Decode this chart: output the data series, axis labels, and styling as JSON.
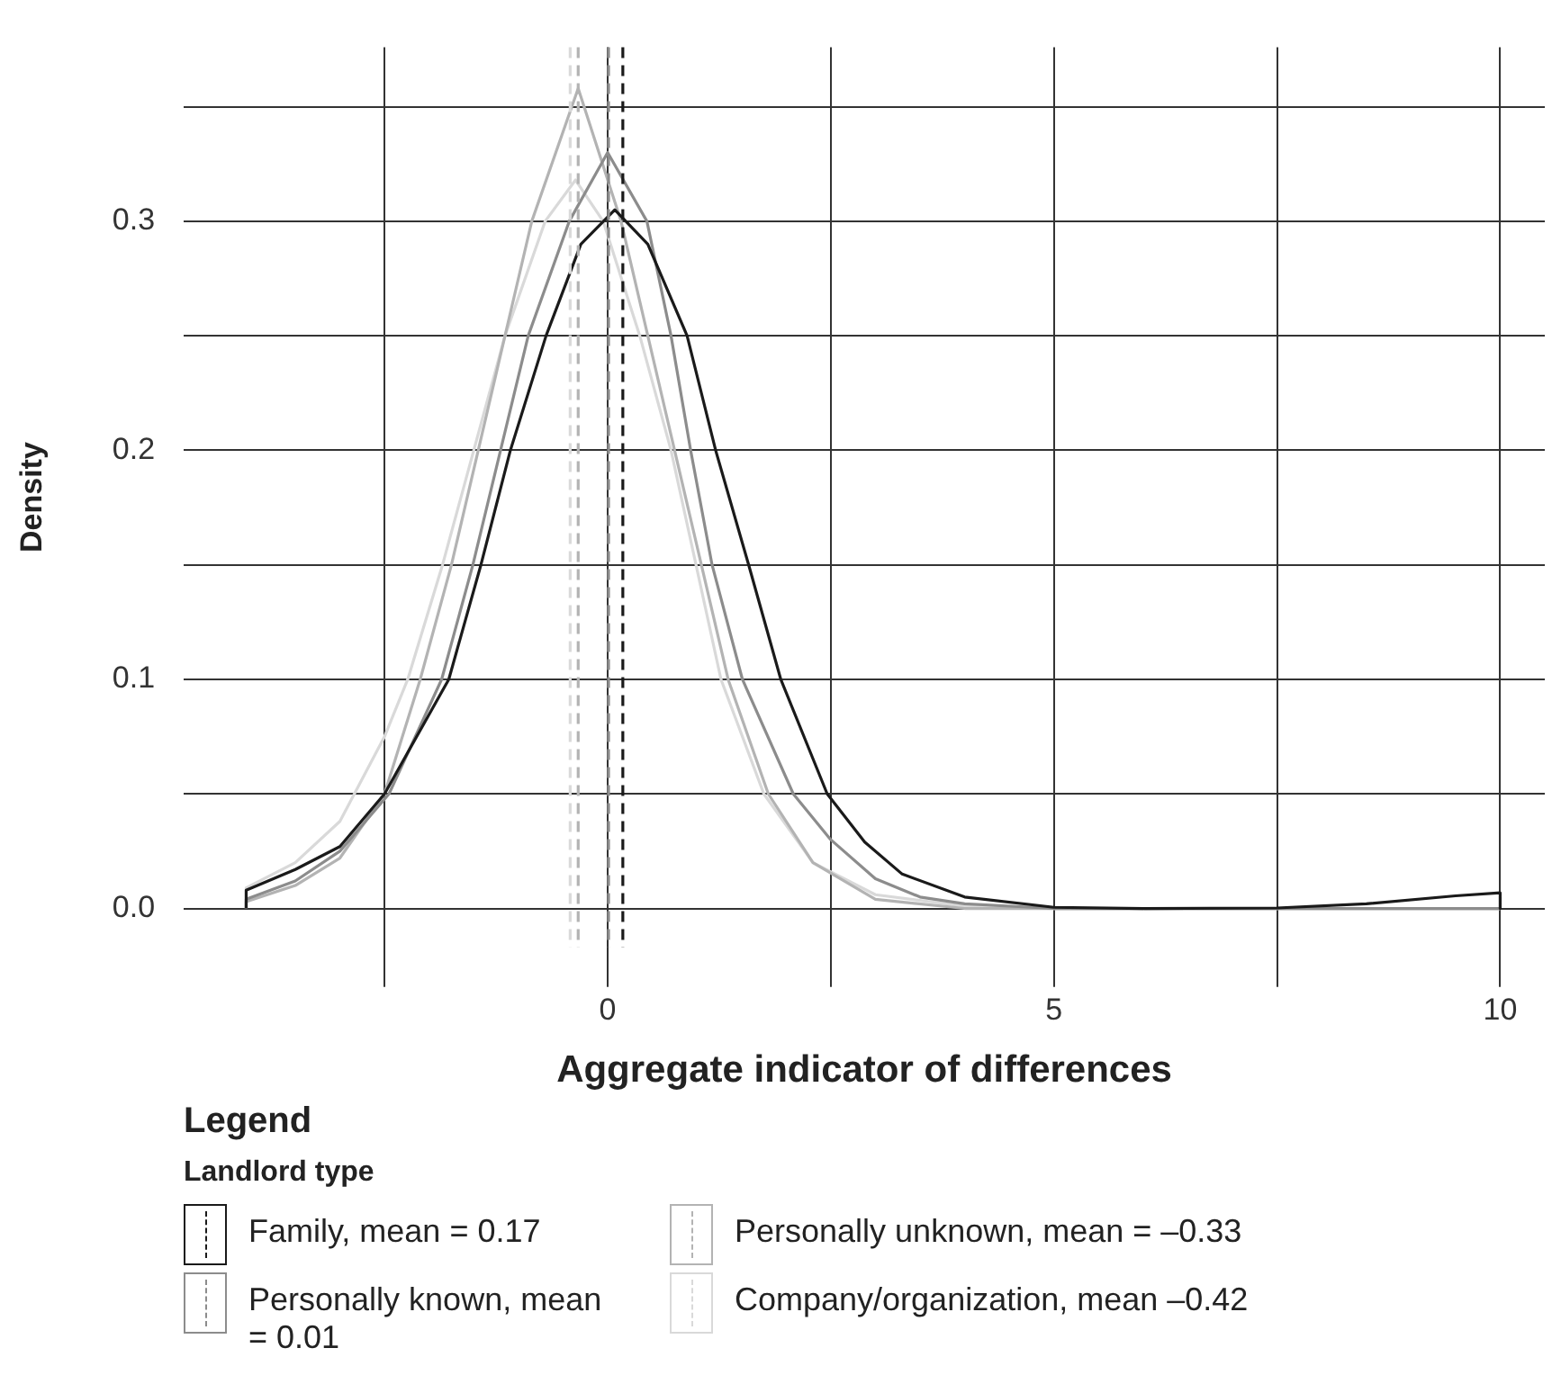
{
  "chart_data": {
    "type": "line",
    "xlabel": "Aggregate indicator of differences",
    "ylabel": "Density",
    "legend_title": "Landlord type",
    "annotations": [
      "Legend"
    ],
    "legend": "bottom left",
    "grid": true,
    "xlim": [
      -4.75,
      10.5
    ],
    "ylim": [
      -0.017,
      0.376
    ],
    "xticks": [
      {
        "value": -2.5,
        "label": null
      },
      0,
      {
        "value": 2.5,
        "label": null
      },
      5,
      {
        "value": 7.5,
        "label": null
      },
      10
    ],
    "yticks": [
      {
        "value": 0,
        "label": "0.0"
      },
      {
        "value": 0.05,
        "label": null
      },
      0.1,
      {
        "value": 0.15,
        "label": null
      },
      0.2,
      {
        "value": 0.25,
        "label": null
      },
      0.3,
      {
        "value": 0.35,
        "label": null
      }
    ],
    "series": [
      {
        "name": "Family, mean = 0.17",
        "color": "#1a1a1a",
        "x": [
          -4.05,
          -4.05,
          -3.5,
          -3,
          -2.5,
          -1.78,
          -1.42,
          -1.09,
          -0.69,
          -0.3,
          0.08,
          0.45,
          0.89,
          1.21,
          1.58,
          1.94,
          2.46,
          2.88,
          3.3,
          4,
          5,
          6,
          7.5,
          8.5,
          9.5,
          10,
          10
        ],
        "values": [
          0,
          0.008,
          0.017,
          0.027,
          0.05,
          0.1,
          0.15,
          0.2,
          0.25,
          0.29,
          0.305,
          0.29,
          0.25,
          0.2,
          0.15,
          0.1,
          0.05,
          0.029,
          0.015,
          0.005,
          0.0005,
          0,
          0.0002,
          0.002,
          0.0055,
          0.0068,
          0
        ]
      },
      {
        "name": "Personally known, mean = 0.01",
        "color": "#8c8c8c",
        "x": [
          -4.05,
          -4.05,
          -3.5,
          -3,
          -2.45,
          -1.86,
          -1.51,
          -1.2,
          -0.89,
          -0.43,
          0,
          0.44,
          0.71,
          0.93,
          1.17,
          1.51,
          2.08,
          2.5,
          3,
          3.5,
          4,
          5,
          10
        ],
        "values": [
          0,
          0.004,
          0.012,
          0.025,
          0.05,
          0.1,
          0.15,
          0.2,
          0.25,
          0.3,
          0.33,
          0.3,
          0.25,
          0.2,
          0.15,
          0.1,
          0.05,
          0.03,
          0.013,
          0.005,
          0.002,
          0,
          0
        ]
      },
      {
        "name": "Personally unknown, mean = –0.33",
        "color": "#b3b3b3",
        "x": [
          -4.05,
          -4.05,
          -3.5,
          -3,
          -2.5,
          -2.1,
          -1.75,
          -1.45,
          -1.15,
          -0.85,
          -0.33,
          0.15,
          0.45,
          0.75,
          1.05,
          1.35,
          1.8,
          2.3,
          3,
          4,
          10
        ],
        "values": [
          0,
          0.003,
          0.01,
          0.022,
          0.05,
          0.1,
          0.15,
          0.2,
          0.25,
          0.3,
          0.358,
          0.3,
          0.25,
          0.2,
          0.15,
          0.1,
          0.05,
          0.02,
          0.004,
          0,
          0
        ]
      },
      {
        "name": "Company/organization, mean –0.42",
        "color": "#d9d9d9",
        "x": [
          -4.05,
          -4.05,
          -3.5,
          -3,
          -2.5,
          -2.24,
          -1.85,
          -1.5,
          -1.15,
          -0.7,
          -0.36,
          -0.05,
          0.36,
          0.71,
          0.99,
          1.27,
          1.75,
          2.3,
          3,
          4,
          5,
          10
        ],
        "values": [
          0,
          0.009,
          0.02,
          0.038,
          0.075,
          0.1,
          0.15,
          0.2,
          0.25,
          0.3,
          0.318,
          0.3,
          0.25,
          0.2,
          0.15,
          0.1,
          0.05,
          0.02,
          0.006,
          0.001,
          0,
          0
        ]
      }
    ],
    "ref_lines": [
      {
        "axis": "x",
        "value": 0.17,
        "color": "#1a1a1a",
        "line_style": "dashed"
      },
      {
        "axis": "x",
        "value": 0.01,
        "color": "#8c8c8c",
        "line_style": "dashed"
      },
      {
        "axis": "x",
        "value": -0.33,
        "color": "#b3b3b3",
        "line_style": "dashed"
      },
      {
        "axis": "x",
        "value": -0.42,
        "color": "#d9d9d9",
        "line_style": "dashed"
      }
    ]
  }
}
